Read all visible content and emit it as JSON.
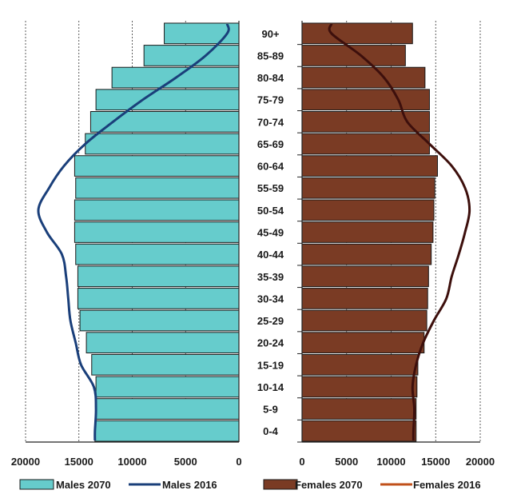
{
  "chart_data": {
    "type": "bar",
    "categories": [
      "0-4",
      "5-9",
      "10-14",
      "15-19",
      "20-24",
      "25-29",
      "30-34",
      "35-39",
      "40-44",
      "45-49",
      "50-54",
      "55-59",
      "60-64",
      "65-69",
      "70-74",
      "75-79",
      "80-84",
      "85-89",
      "90+"
    ],
    "series": [
      {
        "name": "Males 2070",
        "type": "bar",
        "side": "left",
        "values": [
          13500,
          13400,
          13400,
          13800,
          14300,
          14900,
          15100,
          15100,
          15300,
          15400,
          15400,
          15300,
          15400,
          14400,
          13900,
          13400,
          11900,
          8900,
          7000
        ]
      },
      {
        "name": "Males 2016",
        "type": "line",
        "side": "left",
        "values": [
          13500,
          13400,
          13600,
          14800,
          15300,
          15800,
          16000,
          16200,
          16600,
          18000,
          18800,
          17800,
          16400,
          14400,
          11800,
          9000,
          5900,
          3100,
          1100
        ]
      },
      {
        "name": "Females 2070",
        "type": "bar",
        "side": "right",
        "values": [
          12800,
          12800,
          12900,
          13000,
          13700,
          14000,
          14100,
          14200,
          14500,
          14700,
          14800,
          14900,
          15200,
          14300,
          14300,
          14300,
          13800,
          11600,
          12400
        ]
      },
      {
        "name": "Females 2016",
        "type": "line",
        "side": "right",
        "values": [
          12500,
          12600,
          12400,
          12800,
          13600,
          14800,
          16200,
          16800,
          17600,
          18300,
          18800,
          18300,
          16800,
          14300,
          11800,
          10800,
          9200,
          6600,
          3300
        ]
      }
    ],
    "x_ticks_left": [
      "20000",
      "15000",
      "10000",
      "5000",
      "0"
    ],
    "x_ticks_right": [
      "0",
      "5000",
      "10000",
      "15000",
      "20000"
    ],
    "xlim": [
      0,
      20000
    ],
    "grid": "vertical-dashed",
    "legend_position": "bottom",
    "colors": {
      "males_2070": "#66cccc",
      "males_2016": "#1a3f7a",
      "females_2070": "#7a3b24",
      "females_2016": "#3d0f0c",
      "females_2016_legend": "#c0501a",
      "bar_outline": "#1a1a1a"
    }
  }
}
